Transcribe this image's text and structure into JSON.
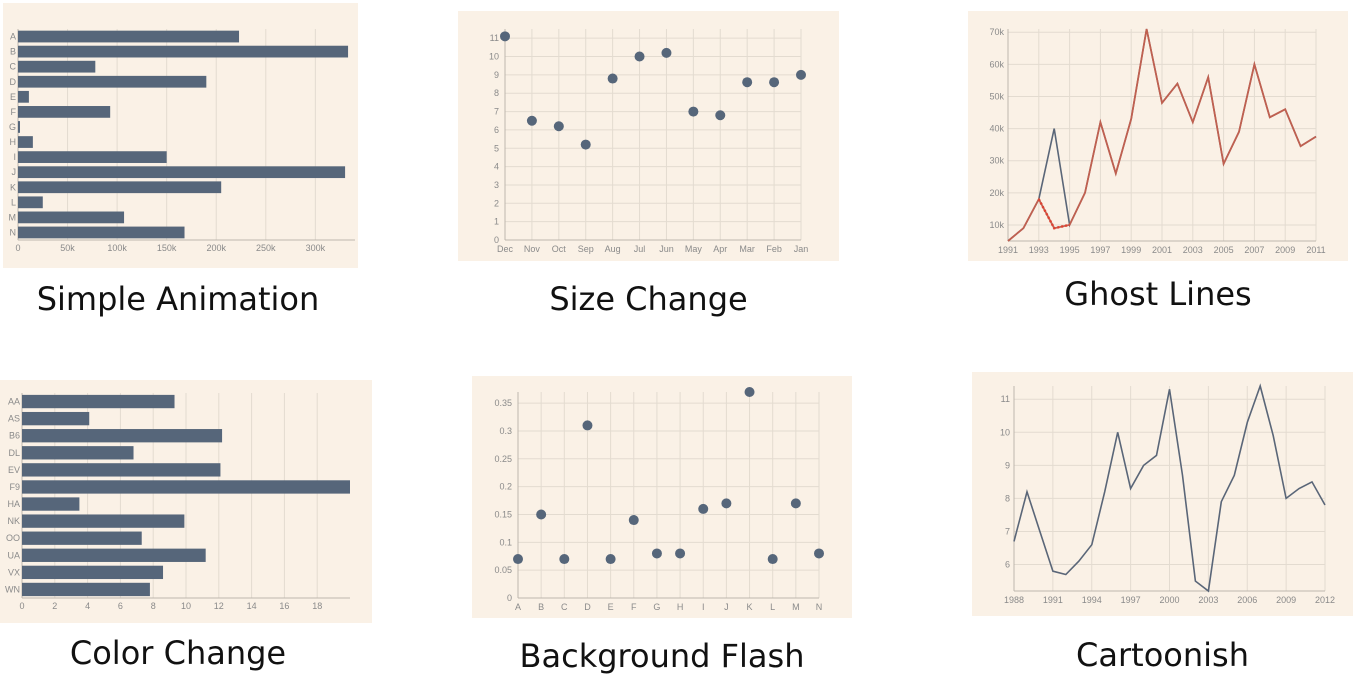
{
  "colors": {
    "panel_bg": "#faf1e6",
    "grid": "#e3dbd0",
    "axis": "#bdb6ad",
    "mark": "#56667a",
    "ghost_line": "#c06050",
    "ghost_dotted": "#e04030",
    "caption": "#111111"
  },
  "captions": [
    "Simple Animation",
    "Size Change",
    "Ghost Lines",
    "Color Change",
    "Background Flash",
    "Cartoonish"
  ],
  "chart_data": [
    {
      "type": "bar",
      "orientation": "horizontal",
      "categories": [
        "A",
        "B",
        "C",
        "D",
        "E",
        "F",
        "G",
        "H",
        "I",
        "J",
        "K",
        "L",
        "M",
        "N"
      ],
      "values": [
        223000,
        333000,
        78000,
        190000,
        11000,
        93000,
        2000,
        15000,
        150000,
        330000,
        205000,
        25000,
        107000,
        168000
      ],
      "xlim": [
        0,
        340000
      ],
      "xticks": [
        0,
        50000,
        100000,
        150000,
        200000,
        250000,
        300000
      ],
      "xtick_labels": [
        "0",
        "50k",
        "100k",
        "150k",
        "200k",
        "250k",
        "300k"
      ],
      "grid": true
    },
    {
      "type": "scatter",
      "categories": [
        "Dec",
        "Nov",
        "Oct",
        "Sep",
        "Aug",
        "Jul",
        "Jun",
        "May",
        "Apr",
        "Mar",
        "Feb",
        "Jan"
      ],
      "values": [
        11.1,
        6.5,
        6.2,
        5.2,
        8.8,
        10.0,
        10.2,
        7.0,
        6.8,
        8.6,
        8.6,
        9.0
      ],
      "ylim": [
        0,
        11.5
      ],
      "yticks": [
        0,
        1,
        2,
        3,
        4,
        5,
        6,
        7,
        8,
        9,
        10,
        11
      ],
      "grid": true
    },
    {
      "type": "line",
      "x": [
        1991,
        1992,
        1993,
        1994,
        1995,
        1996,
        1997,
        1998,
        1999,
        2000,
        2001,
        2002,
        2003,
        2004,
        2005,
        2006,
        2007,
        2008,
        2009,
        2010,
        2011
      ],
      "series": [
        {
          "values": [
            5000,
            9000,
            18000,
            40000,
            10000,
            20000,
            42000,
            26000,
            43000,
            71000,
            48000,
            54000,
            42000,
            56000,
            29000,
            39000,
            60000,
            43500,
            46000,
            34500,
            37500
          ]
        },
        {
          "values": [
            5000,
            9000,
            18000,
            9000,
            10000,
            20000,
            42000,
            26000,
            43000,
            71000,
            48000,
            54000,
            42000,
            56000,
            29000,
            39000,
            60000,
            43500,
            46000,
            34500,
            37500
          ]
        }
      ],
      "ylim": [
        5000,
        71000
      ],
      "yticks": [
        10000,
        20000,
        30000,
        40000,
        50000,
        60000,
        70000
      ],
      "ytick_labels": [
        "10k",
        "20k",
        "30k",
        "40k",
        "50k",
        "60k",
        "70k"
      ],
      "xticks": [
        1991,
        1993,
        1995,
        1997,
        1999,
        2001,
        2003,
        2005,
        2007,
        2009,
        2011
      ],
      "grid": true
    },
    {
      "type": "bar",
      "orientation": "horizontal",
      "categories": [
        "AA",
        "AS",
        "B6",
        "DL",
        "EV",
        "F9",
        "HA",
        "NK",
        "OO",
        "UA",
        "VX",
        "WN"
      ],
      "values": [
        9.3,
        4.1,
        12.2,
        6.8,
        12.1,
        20.0,
        3.5,
        9.9,
        7.3,
        11.2,
        8.6,
        7.8
      ],
      "xlim": [
        0,
        20
      ],
      "xticks": [
        0,
        2,
        4,
        6,
        8,
        10,
        12,
        14,
        16,
        18
      ],
      "grid": true
    },
    {
      "type": "scatter",
      "categories": [
        "A",
        "B",
        "C",
        "D",
        "E",
        "F",
        "G",
        "H",
        "I",
        "J",
        "K",
        "L",
        "M",
        "N"
      ],
      "values": [
        0.07,
        0.15,
        0.07,
        0.31,
        0.07,
        0.14,
        0.08,
        0.08,
        0.16,
        0.17,
        0.37,
        0.07,
        0.17,
        0.08
      ],
      "ylim": [
        0,
        0.37
      ],
      "yticks": [
        0,
        0.05,
        0.1,
        0.15,
        0.2,
        0.25,
        0.3,
        0.35
      ],
      "grid": true
    },
    {
      "type": "line",
      "x": [
        1988,
        1989,
        1990,
        1991,
        1992,
        1993,
        1994,
        1995,
        1996,
        1997,
        1998,
        1999,
        2000,
        2001,
        2002,
        2003,
        2004,
        2005,
        2006,
        2007,
        2008,
        2009,
        2010,
        2011,
        2012
      ],
      "series": [
        {
          "values": [
            6.7,
            8.2,
            7.0,
            5.8,
            5.7,
            6.1,
            6.6,
            8.2,
            10.0,
            8.3,
            9.0,
            9.3,
            11.3,
            8.7,
            5.5,
            5.2,
            7.9,
            8.7,
            10.3,
            11.4,
            9.9,
            8.0,
            8.3,
            8.5,
            7.8
          ]
        }
      ],
      "ylim": [
        5.2,
        11.4
      ],
      "yticks": [
        6,
        7,
        8,
        9,
        10,
        11
      ],
      "xticks": [
        1988,
        1991,
        1994,
        1997,
        2000,
        2003,
        2006,
        2009,
        2012
      ],
      "grid": true
    }
  ]
}
